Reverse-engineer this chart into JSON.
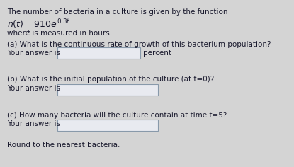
{
  "bg_color": "#d4d4d4",
  "text_color": "#1a1a2e",
  "box_color": "#e8eaf0",
  "box_edge_color": "#8899aa",
  "line1": "The number of bacteria in a culture is given by the function",
  "line3_where": "where ",
  "line3_t": "t",
  "line3_rest": " is measured in hours.",
  "qa_label": "(a) What is the continuous rate of growth of this bacterium population?",
  "qa_answer": "Your answer is",
  "qa_suffix": "percent",
  "qb_label": "(b) What is the initial population of the culture (at t=0)?",
  "qb_answer": "Your answer is",
  "qc_label": "(c) How many bacteria will the culture contain at time t=5?",
  "qc_answer": "Your answer is",
  "qc_note": "Round to the nearest bacteria.",
  "font_size": 7.5,
  "font_size_formula": 9.0
}
